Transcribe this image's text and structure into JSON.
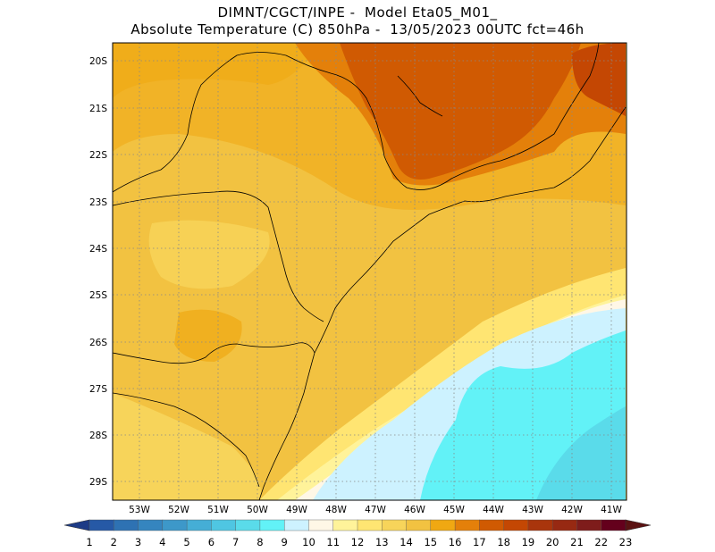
{
  "header": {
    "line1": "DIMNT/CGCT/INPE -  Model Eta05_M01_",
    "line2": "Absolute Temperature (C) 850hPa -  13/05/2023 00UTC fct=46h"
  },
  "map": {
    "lat_labels": [
      "20S",
      "21S",
      "22S",
      "23S",
      "24S",
      "25S",
      "26S",
      "27S",
      "28S",
      "29S"
    ],
    "lon_labels": [
      "53W",
      "52W",
      "51W",
      "50W",
      "49W",
      "48W",
      "47W",
      "46W",
      "45W",
      "44W",
      "43W",
      "42W",
      "41W"
    ]
  },
  "colorbar": {
    "labels": [
      "1",
      "2",
      "3",
      "4",
      "5",
      "6",
      "7",
      "8",
      "9",
      "10",
      "11",
      "12",
      "13",
      "14",
      "15",
      "16",
      "17",
      "18",
      "19",
      "20",
      "21",
      "22",
      "23"
    ],
    "colors": [
      "#1f3f95",
      "#2659a6",
      "#2e72b3",
      "#3585bf",
      "#3d98c9",
      "#45aed6",
      "#4fc6e2",
      "#5adbea",
      "#62f2f7",
      "#cdf2ff",
      "#fff7e6",
      "#fff39a",
      "#ffe572",
      "#f7d45a",
      "#f2c241",
      "#f0a812",
      "#e4800a",
      "#d05a02",
      "#c44703",
      "#a9350c",
      "#972912",
      "#7e1c1b",
      "#64001c"
    ],
    "left_arrow_color": "#1d3b86",
    "right_arrow_color": "#5a1212"
  }
}
